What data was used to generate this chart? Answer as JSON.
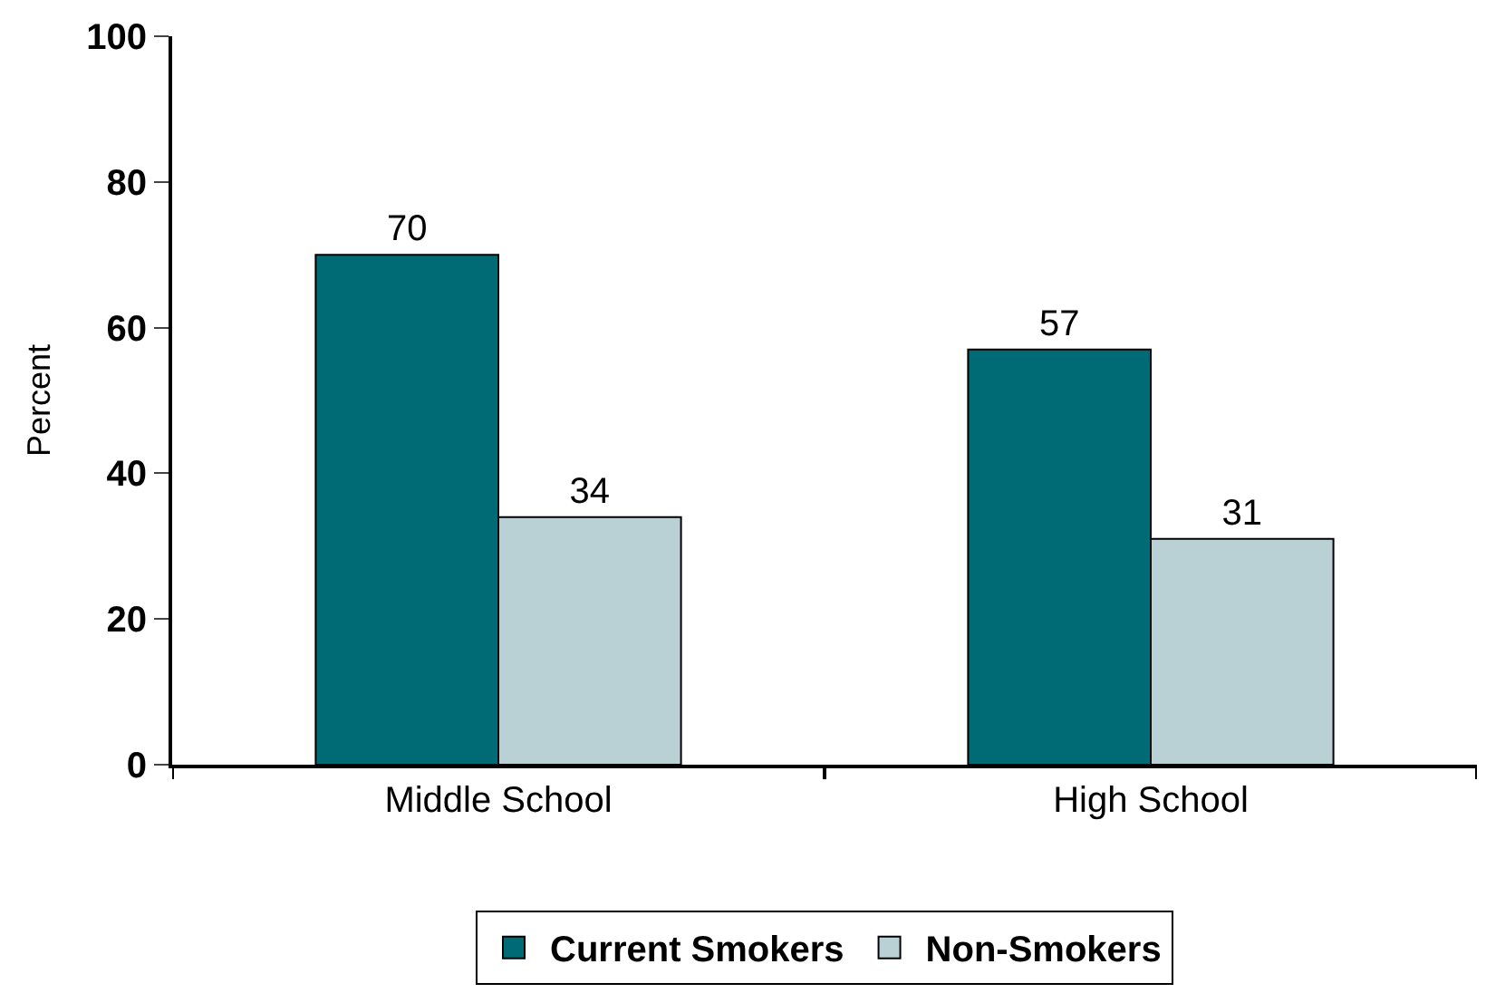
{
  "chart_data": {
    "type": "bar",
    "ylabel": "Percent",
    "categories": [
      "Middle School",
      "High School"
    ],
    "series": [
      {
        "name": "Current Smokers",
        "color": "#006b74",
        "values": [
          70,
          57
        ]
      },
      {
        "name": "Non-Smokers",
        "color": "#b9d1d5",
        "values": [
          34,
          31
        ]
      }
    ],
    "ylim": [
      0,
      100
    ],
    "yticks": [
      0,
      20,
      40,
      60,
      80,
      100
    ],
    "data_labels": true,
    "legend": "bottom"
  }
}
